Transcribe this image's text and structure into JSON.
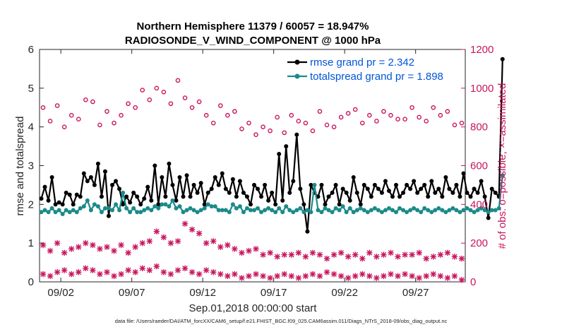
{
  "chart_data": {
    "type": "line",
    "title": "Northern Hemisphere 11379 / 60057 = 18.947%",
    "subtitle": "RADIOSONDE_V_WIND_COMPONENT @ 1000 hPa",
    "xlabel": "Sep.01,2018 00:00:00 start",
    "ylabel": "rmse and totalspread",
    "ylabel_right": "# of obs: o=possible; ×=assimilated",
    "xlim": [
      0.5,
      30.5
    ],
    "ylim": [
      0,
      6
    ],
    "ylim_right": [
      0,
      1200
    ],
    "x_tick_values": [
      2,
      7,
      12,
      17,
      22,
      27
    ],
    "x_tick_labels": [
      "09/02",
      "09/07",
      "09/12",
      "09/17",
      "09/22",
      "09/27"
    ],
    "y_ticks": [
      0,
      1,
      2,
      3,
      4,
      5,
      6
    ],
    "y_ticks_right": [
      0,
      200,
      400,
      600,
      800,
      1000,
      1200
    ],
    "x_step": 0.25,
    "x_start": 0.625,
    "series": [
      {
        "name": "rmse grand pr = 2.342",
        "axis": "left",
        "color": "#000000",
        "values": [
          2.15,
          2.45,
          2.1,
          2.7,
          2.0,
          2.05,
          2.0,
          2.3,
          2.25,
          2.0,
          2.25,
          2.2,
          2.8,
          2.6,
          2.7,
          2.5,
          3.05,
          2.2,
          2.85,
          1.7,
          2.5,
          2.6,
          2.4,
          2.0,
          2.2,
          2.05,
          2.3,
          2.2,
          2.0,
          2.15,
          2.45,
          2.1,
          3.0,
          2.0,
          2.7,
          2.2,
          3.05,
          2.5,
          2.1,
          2.7,
          2.2,
          2.75,
          2.2,
          2.5,
          2.3,
          2.55,
          2.0,
          2.3,
          2.4,
          2.7,
          2.5,
          2.8,
          2.4,
          2.3,
          2.65,
          2.2,
          2.6,
          2.3,
          2.2,
          2.0,
          2.5,
          2.4,
          2.2,
          2.5,
          2.1,
          2.3,
          2.0,
          3.3,
          2.1,
          3.5,
          2.3,
          2.6,
          3.8,
          2.4,
          2.0,
          1.3,
          2.5,
          2.3,
          2.2,
          2.5,
          2.0,
          2.2,
          2.3,
          2.5,
          2.0,
          2.4,
          2.3,
          2.1,
          2.7,
          2.3,
          2.0,
          2.5,
          2.4,
          2.2,
          2.5,
          2.4,
          2.3,
          2.6,
          2.35,
          2.2,
          2.5,
          2.2,
          2.3,
          2.5,
          2.4,
          2.6,
          2.3,
          2.4,
          2.5,
          2.2,
          2.6,
          2.3,
          2.4,
          2.2,
          2.7,
          2.4,
          2.3,
          2.5,
          2.2,
          2.8,
          2.3,
          2.2,
          2.4,
          2.3,
          2.6,
          2.2,
          1.65,
          2.4,
          2.3,
          2.2,
          5.75
        ]
      },
      {
        "name": "totalspread grand pr = 1.898",
        "axis": "left",
        "color": "#1b8a8a",
        "values": [
          1.8,
          1.85,
          1.8,
          1.9,
          1.8,
          1.85,
          1.75,
          1.85,
          1.8,
          1.85,
          1.8,
          1.9,
          1.95,
          2.1,
          1.85,
          2.0,
          1.95,
          1.8,
          1.9,
          1.9,
          1.85,
          2.0,
          1.85,
          2.3,
          1.9,
          1.8,
          1.9,
          1.8,
          1.8,
          1.85,
          1.9,
          1.85,
          1.95,
          1.9,
          2.0,
          2.0,
          1.95,
          2.1,
          1.9,
          1.95,
          1.8,
          1.85,
          1.9,
          1.85,
          1.8,
          1.85,
          1.9,
          2.0,
          1.95,
          1.95,
          1.85,
          1.85,
          1.85,
          1.8,
          2.0,
          1.9,
          1.95,
          1.8,
          1.9,
          1.85,
          1.85,
          1.9,
          1.8,
          1.85,
          1.9,
          1.85,
          1.8,
          1.9,
          1.8,
          1.95,
          1.85,
          1.8,
          1.85,
          1.9,
          1.8,
          1.85,
          1.8,
          2.5,
          1.85,
          1.8,
          1.9,
          1.85,
          1.8,
          1.9,
          1.85,
          1.95,
          1.8,
          1.9,
          1.8,
          1.85,
          1.9,
          1.85,
          1.8,
          1.85,
          1.9,
          1.85,
          1.8,
          1.85,
          1.9,
          1.85,
          1.8,
          1.9,
          1.85,
          1.8,
          1.85,
          1.9,
          1.85,
          1.8,
          1.9,
          1.85,
          1.8,
          1.85,
          1.9,
          1.85,
          1.8,
          1.85,
          1.9,
          1.85,
          1.8,
          1.85,
          1.9,
          1.85,
          1.8,
          1.85,
          1.9,
          1.85,
          1.8,
          1.85,
          1.85,
          1.9,
          2.75
        ]
      },
      {
        "name": "possible obs",
        "axis": "right",
        "marker": "o",
        "color": "#c8155e",
        "values": [
          900,
          830,
          910,
          800,
          860,
          840,
          940,
          930,
          810,
          880,
          820,
          860,
          920,
          900,
          990,
          940,
          1000,
          980,
          920,
          1040,
          950,
          900,
          930,
          860,
          820,
          910,
          860,
          880,
          790,
          820,
          760,
          800,
          780,
          850,
          770,
          860,
          830,
          820,
          780,
          880,
          810,
          800,
          850,
          870,
          890,
          820,
          860,
          830,
          880,
          860,
          840,
          840,
          900,
          850,
          830,
          900,
          860,
          880,
          810,
          820
        ]
      },
      {
        "name": "assimilated obs (upper)",
        "axis": "right",
        "marker": "x",
        "color": "#c8155e",
        "values": [
          190,
          160,
          200,
          150,
          170,
          180,
          200,
          190,
          170,
          180,
          160,
          190,
          150,
          180,
          200,
          210,
          260,
          230,
          200,
          210,
          300,
          270,
          250,
          200,
          210,
          180,
          190,
          170,
          150,
          160,
          170,
          140,
          150,
          130,
          140,
          140,
          150,
          130,
          150,
          140,
          120,
          140,
          150,
          130,
          140,
          120,
          150,
          130,
          140,
          150,
          130,
          140,
          140,
          150,
          120,
          130,
          140,
          150,
          130,
          120
        ]
      },
      {
        "name": "assimilated obs (lower)",
        "axis": "right",
        "marker": "x",
        "color": "#c8155e",
        "values": [
          40,
          30,
          50,
          60,
          40,
          50,
          70,
          60,
          40,
          50,
          30,
          40,
          60,
          50,
          70,
          60,
          80,
          50,
          40,
          60,
          70,
          50,
          40,
          60,
          50,
          40,
          30,
          40,
          20,
          30,
          40,
          30,
          20,
          30,
          40,
          30,
          20,
          30,
          40,
          30,
          50,
          40,
          30,
          20,
          30,
          40,
          30,
          20,
          30,
          40,
          30,
          40,
          30,
          20,
          30,
          40,
          30,
          20,
          30,
          10
        ]
      }
    ],
    "legend_position": "top-right"
  },
  "footer": {
    "data_file": "data file: /Users/raeder/DAI/ATM_forcXX/CAM6_setup/f.e21.FHIST_BGC.f09_025.CAM6assim.011/Diags_NTrS_2018-09/obs_diag_output.nc"
  },
  "colors": {
    "rmse": "#000000",
    "spread": "#1b8a8a",
    "obs": "#c8155e",
    "legend_text": "#0055d8"
  }
}
